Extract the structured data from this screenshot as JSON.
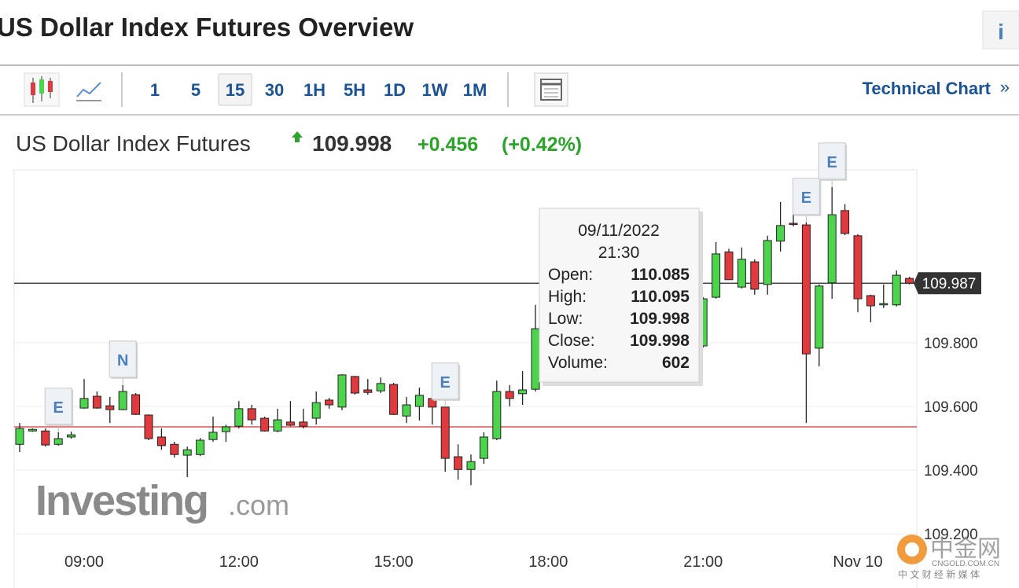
{
  "header": {
    "title": "US Dollar Index Futures Overview",
    "info": "i"
  },
  "toolbar": {
    "intervals": [
      "1",
      "5",
      "15",
      "30",
      "1H",
      "5H",
      "1D",
      "1W",
      "1M"
    ],
    "selected": 2,
    "link": "Technical Chart",
    "link_arrow": "»"
  },
  "quote": {
    "name": "US Dollar Index Futures",
    "price": 109.998,
    "change": "+0.456",
    "change_pct": "(+0.42%)"
  },
  "tooltip": {
    "date": "09/11/2022",
    "time": "21:30",
    "rows": [
      {
        "label": "Open:",
        "value": 110.085
      },
      {
        "label": "High:",
        "value": 110.095
      },
      {
        "label": "Low:",
        "value": 109.998
      },
      {
        "label": "Close:",
        "value": 109.998
      },
      {
        "label": "Volume:",
        "value": 602
      }
    ]
  },
  "watermark": {
    "brand": "Investing",
    "suffix": ".com",
    "cn_name": "中金网",
    "cn_domain": "CNGOLD.COM.CN",
    "cn_slogan": "中 文 财 经 新 媒 体"
  },
  "chart_data": {
    "type": "candlestick",
    "up_color": "#4cd54c",
    "down_color": "#e0393e",
    "categories": [
      null,
      null,
      null,
      null,
      null,
      "09:00",
      null,
      null,
      null,
      null,
      null,
      null,
      null,
      null,
      null,
      null,
      null,
      "12:00",
      null,
      null,
      null,
      null,
      null,
      null,
      null,
      null,
      null,
      null,
      null,
      "15:00",
      null,
      null,
      null,
      null,
      null,
      null,
      null,
      null,
      null,
      null,
      null,
      "18:00",
      null,
      null,
      null,
      null,
      null,
      null,
      null,
      null,
      null,
      null,
      null,
      "21:00",
      null,
      null,
      null,
      null,
      null,
      null,
      null,
      null,
      null,
      null,
      null,
      "Nov 10",
      null,
      null,
      null,
      null
    ],
    "open": [
      109.481,
      109.523,
      109.523,
      109.481,
      109.504,
      109.595,
      109.632,
      109.602,
      109.59,
      109.637,
      109.573,
      109.504,
      109.481,
      109.447,
      109.449,
      109.496,
      109.521,
      109.538,
      109.593,
      109.563,
      109.523,
      109.551,
      109.551,
      109.563,
      109.62,
      109.598,
      109.694,
      109.652,
      109.649,
      109.669,
      109.57,
      109.6,
      109.625,
      109.598,
      109.442,
      109.402,
      109.437,
      109.499,
      109.647,
      109.64,
      109.654,
      109.844,
      109.889,
      109.864,
      109.901,
      109.877,
      109.84,
      109.815,
      109.778,
      109.815,
      109.79,
      109.827,
      109.802,
      109.79,
      109.943,
      110.085,
      109.975,
      110.054,
      109.983,
      110.119,
      110.175,
      110.17,
      109.783,
      109.988,
      110.215,
      110.136,
      109.948,
      109.919,
      109.919,
      110.002
    ],
    "high": [
      109.548,
      109.531,
      109.531,
      109.519,
      109.521,
      109.686,
      109.647,
      109.63,
      109.667,
      109.642,
      109.575,
      109.531,
      109.489,
      109.474,
      109.501,
      109.568,
      109.543,
      109.617,
      109.605,
      109.568,
      109.593,
      109.617,
      109.593,
      109.647,
      109.627,
      109.701,
      109.696,
      109.686,
      109.691,
      109.674,
      109.63,
      109.659,
      109.649,
      109.598,
      109.481,
      109.449,
      109.519,
      109.681,
      109.667,
      109.711,
      109.919,
      109.914,
      109.901,
      109.919,
      109.926,
      109.889,
      109.852,
      109.827,
      109.827,
      109.84,
      109.844,
      109.84,
      109.815,
      109.943,
      110.116,
      110.095,
      110.099,
      110.062,
      110.136,
      110.242,
      110.21,
      110.178,
      109.983,
      110.289,
      110.235,
      110.141,
      109.951,
      109.983,
      110.027,
      110.007
    ],
    "low": [
      109.457,
      109.521,
      109.474,
      109.477,
      109.499,
      109.593,
      109.593,
      109.548,
      109.588,
      109.573,
      109.494,
      109.464,
      109.44,
      109.378,
      109.444,
      109.489,
      109.489,
      109.531,
      109.543,
      109.521,
      109.519,
      109.538,
      109.531,
      109.543,
      109.593,
      109.588,
      109.637,
      109.637,
      109.642,
      109.573,
      109.548,
      109.556,
      109.543,
      109.395,
      109.37,
      109.353,
      109.42,
      109.494,
      109.6,
      109.605,
      109.647,
      109.827,
      109.852,
      109.84,
      109.864,
      109.815,
      109.79,
      109.672,
      109.765,
      109.778,
      109.778,
      109.79,
      109.778,
      109.785,
      109.938,
      109.998,
      109.97,
      109.951,
      109.951,
      110.086,
      110.165,
      109.548,
      109.726,
      109.938,
      110.138,
      109.896,
      109.864,
      109.909,
      109.914,
      109.983
    ],
    "close": [
      109.531,
      109.528,
      109.479,
      109.499,
      109.511,
      109.625,
      109.595,
      109.59,
      109.647,
      109.575,
      109.499,
      109.477,
      109.449,
      109.464,
      109.494,
      109.519,
      109.536,
      109.593,
      109.558,
      109.523,
      109.558,
      109.541,
      109.538,
      109.612,
      109.605,
      109.699,
      109.642,
      109.644,
      109.672,
      109.575,
      109.605,
      109.635,
      109.598,
      109.437,
      109.402,
      109.427,
      109.504,
      109.647,
      109.625,
      109.652,
      109.844,
      109.889,
      109.864,
      109.901,
      109.877,
      109.84,
      109.815,
      109.778,
      109.815,
      109.79,
      109.827,
      109.802,
      109.79,
      109.938,
      110.079,
      109.998,
      110.062,
      109.968,
      110.121,
      110.168,
      110.173,
      109.765,
      109.978,
      110.202,
      110.143,
      109.938,
      109.916,
      109.923,
      110.012,
      109.987
    ],
    "ylim": [
      109.03,
      110.343
    ],
    "yticks": [
      {
        "value": 109.2,
        "label": "109.200"
      },
      {
        "value": 109.4,
        "label": "109.400"
      },
      {
        "value": 109.6,
        "label": "109.600"
      },
      {
        "value": 109.8,
        "label": "109.800"
      }
    ],
    "grid": true,
    "current_price": 109.987,
    "reference_line": {
      "value": 109.536,
      "color": "#e05050"
    },
    "events": [
      {
        "index": 3,
        "label": "E"
      },
      {
        "index": 8,
        "label": "N"
      },
      {
        "index": 33,
        "label": "E"
      },
      {
        "index": 61,
        "label": "E"
      },
      {
        "index": 63,
        "label": "E"
      }
    ]
  }
}
